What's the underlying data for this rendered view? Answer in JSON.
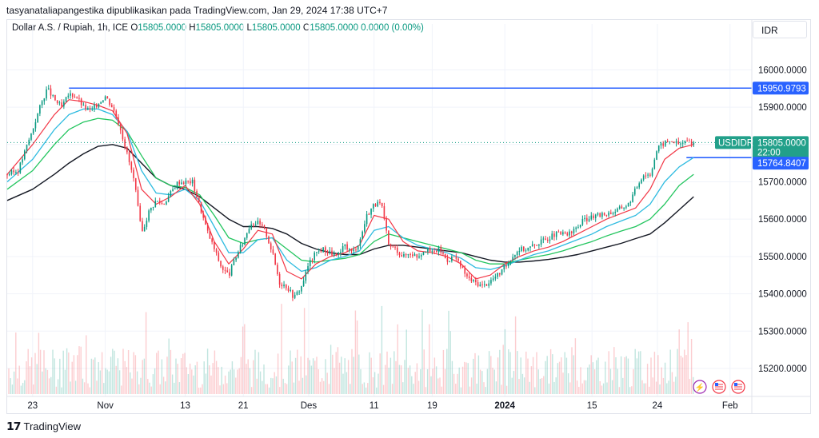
{
  "header": {
    "text": "tasyanataliapangestika dipublikasikan pada TradingView.com, Jan 29, 2024 17:38 UTC+7"
  },
  "legend": {
    "symbol": "Dollar A.S. / Rupiah, 1h, ICE",
    "o_label": "O",
    "o_value": "15805.0000",
    "h_label": "H",
    "h_value": "15805.0000",
    "l_label": "L",
    "l_value": "15805.0000",
    "c_label": "C",
    "c_value": "15805.0000",
    "change": "0.0000 (0.00%)"
  },
  "currency": "IDR",
  "footer": {
    "brand": "TradingView"
  },
  "colors": {
    "up": "#089981",
    "down": "#f23645",
    "line_level": "#2962ff",
    "ema_red": "#f23645",
    "ema_blue": "#2ebbe0",
    "ema_green": "#22c55e",
    "ema_black": "#131722"
  },
  "chart_data": {
    "type": "line",
    "title": "Dollar A.S. / Rupiah, 1h, ICE",
    "x_tick_labels": [
      "23",
      "Nov",
      "13",
      "21",
      "Des",
      "11",
      "19",
      "2024",
      "15",
      "24",
      "Feb"
    ],
    "y_tick_labels": [
      "16000.0000",
      "15900.0000",
      "15800.0000",
      "15700.0000",
      "15600.0000",
      "15500.0000",
      "15400.0000",
      "15300.0000",
      "15200.0000"
    ],
    "ylim": [
      15125,
      16080
    ],
    "x_positions_days": [
      0,
      10,
      21,
      29,
      38,
      47,
      55,
      65,
      77,
      86,
      96
    ],
    "xlim_days": [
      -3.5,
      99
    ],
    "last_bar_day": 91,
    "horizontal_levels": [
      {
        "value": 15950.9793,
        "label": "15950.9793",
        "from_day": 5
      },
      {
        "value": 15764.8407,
        "label": "15764.8407",
        "from_day": 90
      }
    ],
    "last_price": {
      "symbol": "USDIDR",
      "value": "15805.0000",
      "countdown": "22:00"
    },
    "price": {
      "days": [
        -3.5,
        -2,
        0,
        1,
        2,
        3,
        4,
        5,
        6,
        7,
        8,
        9,
        10,
        11,
        12,
        14,
        15,
        16,
        17,
        18,
        20,
        22,
        24,
        25,
        26,
        27,
        28,
        29,
        30,
        31,
        32,
        33,
        34,
        35,
        36,
        37,
        38,
        39,
        40,
        41,
        42,
        43,
        44,
        45,
        46,
        47,
        48,
        49,
        50,
        51,
        52,
        53,
        54,
        55,
        56,
        57,
        58,
        60,
        62,
        64,
        65,
        66,
        67,
        68,
        70,
        72,
        74,
        76,
        78,
        80,
        82,
        84,
        85,
        86,
        87,
        88,
        89,
        90,
        91
      ],
      "values": [
        15720,
        15730,
        15840,
        15900,
        15950,
        15920,
        15900,
        15935,
        15930,
        15900,
        15890,
        15910,
        15930,
        15900,
        15850,
        15700,
        15560,
        15620,
        15650,
        15640,
        15700,
        15700,
        15570,
        15520,
        15470,
        15450,
        15500,
        15540,
        15590,
        15590,
        15570,
        15510,
        15430,
        15420,
        15390,
        15420,
        15480,
        15510,
        15520,
        15510,
        15500,
        15530,
        15510,
        15540,
        15610,
        15640,
        15640,
        15530,
        15520,
        15500,
        15510,
        15500,
        15520,
        15510,
        15520,
        15490,
        15500,
        15440,
        15420,
        15450,
        15470,
        15500,
        15520,
        15520,
        15540,
        15560,
        15560,
        15600,
        15610,
        15620,
        15640,
        15720,
        15720,
        15790,
        15805,
        15810,
        15800,
        15810,
        15805
      ]
    },
    "ema_red": {
      "days": [
        -3.5,
        0,
        3,
        5,
        7,
        9,
        11,
        13,
        15,
        17,
        19,
        21,
        23,
        25,
        27,
        29,
        31,
        33,
        35,
        37,
        39,
        41,
        43,
        45,
        47,
        49,
        51,
        53,
        55,
        57,
        59,
        61,
        63,
        65,
        67,
        69,
        71,
        73,
        75,
        77,
        79,
        81,
        83,
        85,
        87,
        89,
        91
      ],
      "values": [
        15720,
        15800,
        15880,
        15920,
        15915,
        15905,
        15890,
        15830,
        15680,
        15640,
        15660,
        15690,
        15640,
        15540,
        15480,
        15520,
        15570,
        15560,
        15460,
        15440,
        15480,
        15500,
        15510,
        15530,
        15610,
        15600,
        15540,
        15515,
        15510,
        15500,
        15480,
        15440,
        15450,
        15480,
        15500,
        15515,
        15525,
        15540,
        15560,
        15580,
        15600,
        15615,
        15630,
        15680,
        15760,
        15790,
        15800
      ]
    },
    "ema_blue": {
      "days": [
        -3.5,
        0,
        3,
        5,
        7,
        9,
        11,
        13,
        15,
        17,
        19,
        21,
        23,
        25,
        27,
        29,
        31,
        33,
        35,
        37,
        39,
        41,
        43,
        45,
        47,
        49,
        51,
        53,
        55,
        57,
        59,
        61,
        63,
        65,
        67,
        69,
        71,
        73,
        75,
        77,
        79,
        81,
        83,
        85,
        87,
        89,
        91
      ],
      "values": [
        15700,
        15760,
        15840,
        15880,
        15895,
        15895,
        15880,
        15835,
        15730,
        15670,
        15665,
        15680,
        15650,
        15580,
        15510,
        15510,
        15545,
        15550,
        15490,
        15460,
        15470,
        15490,
        15500,
        15515,
        15570,
        15580,
        15550,
        15530,
        15520,
        15510,
        15495,
        15470,
        15465,
        15475,
        15490,
        15505,
        15515,
        15530,
        15545,
        15560,
        15580,
        15595,
        15610,
        15640,
        15700,
        15740,
        15765
      ]
    },
    "ema_green": {
      "days": [
        -3.5,
        0,
        3,
        5,
        7,
        9,
        11,
        13,
        15,
        17,
        19,
        21,
        23,
        25,
        27,
        29,
        31,
        33,
        35,
        37,
        39,
        41,
        43,
        45,
        47,
        49,
        51,
        53,
        55,
        57,
        59,
        61,
        63,
        65,
        67,
        69,
        71,
        73,
        75,
        77,
        79,
        81,
        83,
        85,
        87,
        89,
        91
      ],
      "values": [
        15680,
        15730,
        15800,
        15840,
        15860,
        15870,
        15865,
        15835,
        15770,
        15710,
        15690,
        15685,
        15665,
        15610,
        15550,
        15535,
        15545,
        15550,
        15520,
        15490,
        15485,
        15490,
        15495,
        15505,
        15540,
        15560,
        15550,
        15540,
        15530,
        15520,
        15510,
        15490,
        15480,
        15480,
        15490,
        15498,
        15505,
        15515,
        15528,
        15540,
        15555,
        15568,
        15580,
        15600,
        15640,
        15690,
        15720
      ]
    },
    "ema_black": {
      "days": [
        -3.5,
        0,
        3,
        5,
        7,
        9,
        11,
        13,
        15,
        17,
        19,
        21,
        23,
        25,
        27,
        29,
        31,
        33,
        35,
        37,
        39,
        41,
        43,
        45,
        47,
        49,
        51,
        53,
        55,
        57,
        59,
        61,
        63,
        65,
        67,
        69,
        71,
        73,
        75,
        77,
        79,
        81,
        83,
        85,
        87,
        89,
        91
      ],
      "values": [
        15650,
        15680,
        15720,
        15750,
        15775,
        15795,
        15800,
        15790,
        15750,
        15710,
        15690,
        15680,
        15660,
        15630,
        15600,
        15580,
        15580,
        15575,
        15560,
        15535,
        15520,
        15510,
        15505,
        15505,
        15520,
        15530,
        15530,
        15525,
        15520,
        15515,
        15510,
        15500,
        15490,
        15485,
        15485,
        15488,
        15492,
        15498,
        15505,
        15515,
        15525,
        15535,
        15548,
        15560,
        15590,
        15625,
        15660
      ]
    }
  }
}
